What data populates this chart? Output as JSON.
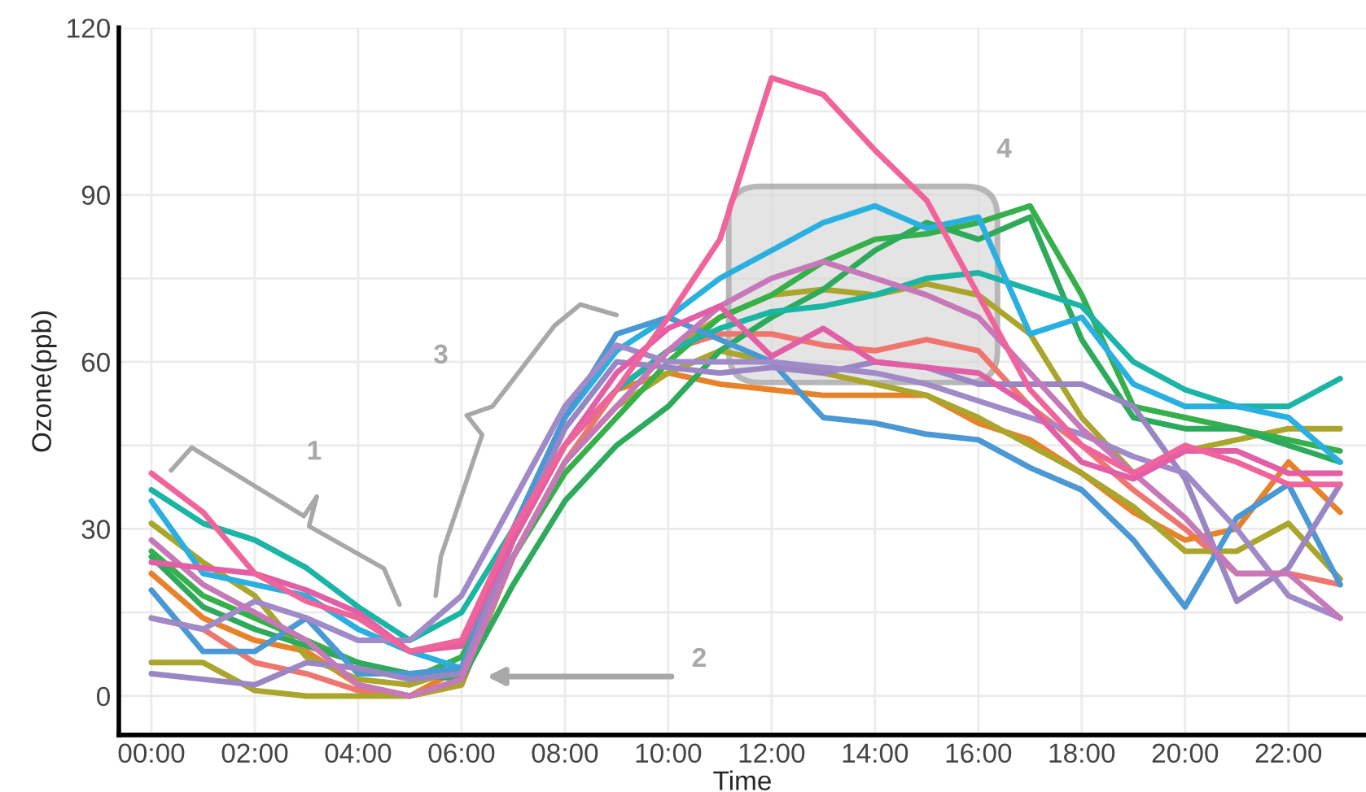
{
  "chart_data": {
    "type": "line",
    "xlabel": "Time",
    "ylabel": "Ozone(ppb)",
    "x": [
      0,
      1,
      2,
      3,
      4,
      5,
      6,
      7,
      8,
      9,
      10,
      11,
      12,
      13,
      14,
      15,
      16,
      17,
      18,
      19,
      20,
      21,
      22,
      23
    ],
    "xlim": [
      -0.63,
      23.5
    ],
    "ylim": [
      -7,
      120
    ],
    "xticks": [
      {
        "value": 0,
        "label": "00:00"
      },
      {
        "value": 2,
        "label": "02:00"
      },
      {
        "value": 4,
        "label": "04:00"
      },
      {
        "value": 6,
        "label": "06:00"
      },
      {
        "value": 8,
        "label": "08:00"
      },
      {
        "value": 10,
        "label": "10:00"
      },
      {
        "value": 12,
        "label": "12:00"
      },
      {
        "value": 14,
        "label": "14:00"
      },
      {
        "value": 16,
        "label": "16:00"
      },
      {
        "value": 18,
        "label": "18:00"
      },
      {
        "value": 20,
        "label": "20:00"
      },
      {
        "value": 22,
        "label": "22:00"
      }
    ],
    "yticks": [
      0,
      {
        "value": 15,
        "label": null
      },
      30,
      {
        "value": 45,
        "label": null
      },
      60,
      {
        "value": 75,
        "label": null
      },
      90,
      {
        "value": 105,
        "label": null
      },
      120
    ],
    "grid": true,
    "line_style": "solid",
    "marker": "none",
    "series": [
      {
        "color": "#ef766f",
        "values": [
          14,
          12,
          6,
          4,
          1,
          0,
          2,
          25,
          42,
          55,
          62,
          65,
          65,
          63,
          62,
          64,
          62,
          52,
          45,
          37,
          30,
          22,
          22,
          20
        ]
      },
      {
        "color": "#e8822a",
        "values": [
          22,
          14,
          10,
          8,
          2,
          0,
          5,
          28,
          45,
          55,
          58,
          56,
          55,
          54,
          54,
          54,
          49,
          46,
          40,
          33,
          28,
          30,
          42,
          33
        ]
      },
      {
        "color": "#aaa52c",
        "values": [
          31,
          24,
          18,
          7,
          3,
          2,
          5,
          28,
          45,
          55,
          62,
          68,
          72,
          73,
          72,
          74,
          72,
          65,
          50,
          40,
          44,
          46,
          48,
          48
        ]
      },
      {
        "color": "#aaa52c",
        "values": [
          6,
          6,
          1,
          0,
          0,
          0,
          2,
          25,
          42,
          52,
          58,
          62,
          60,
          58,
          56,
          54,
          50,
          45,
          40,
          34,
          26,
          26,
          31,
          21
        ]
      },
      {
        "color": "#36b04a",
        "values": [
          26,
          18,
          14,
          10,
          6,
          3,
          7,
          25,
          40,
          50,
          60,
          68,
          72,
          78,
          82,
          83,
          85,
          88,
          72,
          52,
          50,
          48,
          46,
          44
        ]
      },
      {
        "color": "#2eaa5c",
        "values": [
          25,
          16,
          12,
          9,
          6,
          4,
          3,
          20,
          35,
          45,
          52,
          62,
          68,
          73,
          80,
          85,
          82,
          86,
          64,
          50,
          48,
          48,
          45,
          42
        ]
      },
      {
        "color": "#1ab5a5",
        "values": [
          37,
          31,
          28,
          23,
          16,
          10,
          15,
          30,
          45,
          55,
          62,
          66,
          69,
          70,
          72,
          75,
          76,
          73,
          70,
          60,
          55,
          52,
          52,
          57
        ]
      },
      {
        "color": "#29b0e0",
        "values": [
          35,
          22,
          20,
          18,
          12,
          8,
          5,
          30,
          50,
          62,
          68,
          75,
          80,
          85,
          88,
          84,
          86,
          65,
          68,
          56,
          52,
          52,
          50,
          42
        ]
      },
      {
        "color": "#4a98d4",
        "values": [
          19,
          8,
          8,
          14,
          4,
          4,
          5,
          30,
          50,
          65,
          68,
          64,
          60,
          50,
          49,
          47,
          46,
          41,
          37,
          28,
          16,
          32,
          38,
          20
        ]
      },
      {
        "color": "#9b86c4",
        "values": [
          4,
          3,
          2,
          6,
          5,
          3,
          4,
          28,
          48,
          60,
          59,
          58,
          59,
          58,
          60,
          59,
          56,
          56,
          56,
          52,
          39,
          17,
          23,
          38
        ]
      },
      {
        "color": "#a08bc8",
        "values": [
          14,
          12,
          17,
          14,
          10,
          10,
          18,
          35,
          52,
          63,
          60,
          60,
          60,
          59,
          58,
          56,
          53,
          50,
          47,
          43,
          40,
          30,
          18,
          14
        ]
      },
      {
        "color": "#c678b8",
        "values": [
          28,
          20,
          15,
          10,
          2,
          0,
          3,
          25,
          42,
          52,
          62,
          70,
          75,
          78,
          75,
          72,
          68,
          58,
          48,
          40,
          32,
          22,
          22,
          14
        ]
      },
      {
        "color": "#e25fa6",
        "values": [
          24,
          23,
          22,
          19,
          15,
          8,
          9,
          28,
          45,
          58,
          66,
          70,
          61,
          66,
          60,
          59,
          58,
          52,
          42,
          39,
          44,
          44,
          40,
          40
        ]
      },
      {
        "color": "#f0649b",
        "values": [
          40,
          33,
          22,
          17,
          14,
          8,
          10,
          30,
          45,
          55,
          68,
          82,
          111,
          108,
          98,
          89,
          72,
          55,
          45,
          40,
          45,
          42,
          38,
          38
        ]
      }
    ],
    "annotations": [
      "1",
      "2",
      "3",
      "4"
    ]
  }
}
